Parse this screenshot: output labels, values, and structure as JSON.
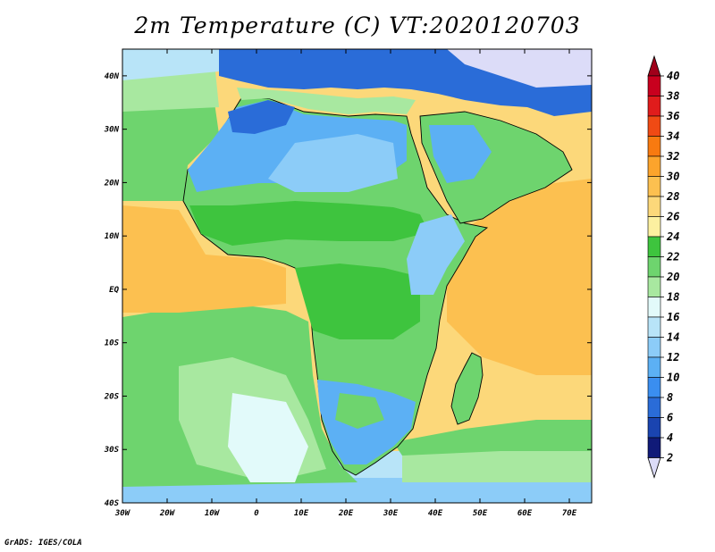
{
  "title": "2m Temperature (C) VT:2020120703",
  "credit": "GrADS: IGES/COLA",
  "map": {
    "lon_labels": [
      "30W",
      "20W",
      "10W",
      "0",
      "10E",
      "20E",
      "30E",
      "40E",
      "50E",
      "60E",
      "70E"
    ],
    "lat_labels": [
      "40N",
      "30N",
      "20N",
      "10N",
      "EQ",
      "10S",
      "20S",
      "30S",
      "40S"
    ],
    "lon_range": [
      -30,
      75
    ],
    "lat_range": [
      -40,
      45
    ]
  },
  "colorbar": {
    "labels": [
      "40",
      "38",
      "36",
      "34",
      "32",
      "30",
      "28",
      "26",
      "24",
      "22",
      "20",
      "18",
      "16",
      "14",
      "12",
      "10",
      "8",
      "6",
      "4",
      "2"
    ],
    "colors": [
      "#a0001a",
      "#c8001e",
      "#e01c1c",
      "#f04a14",
      "#f87a10",
      "#fca42c",
      "#fcc050",
      "#fcd87a",
      "#fcf0a0",
      "#3ec43e",
      "#6ed46e",
      "#a8e8a0",
      "#e2fafa",
      "#b8e4f8",
      "#8cccf8",
      "#5cb0f4",
      "#3a8ef0",
      "#2a6cd8",
      "#1a44b0",
      "#101a78"
    ],
    "under_color": "#dcdcf8",
    "over_color": "#a0001a"
  }
}
